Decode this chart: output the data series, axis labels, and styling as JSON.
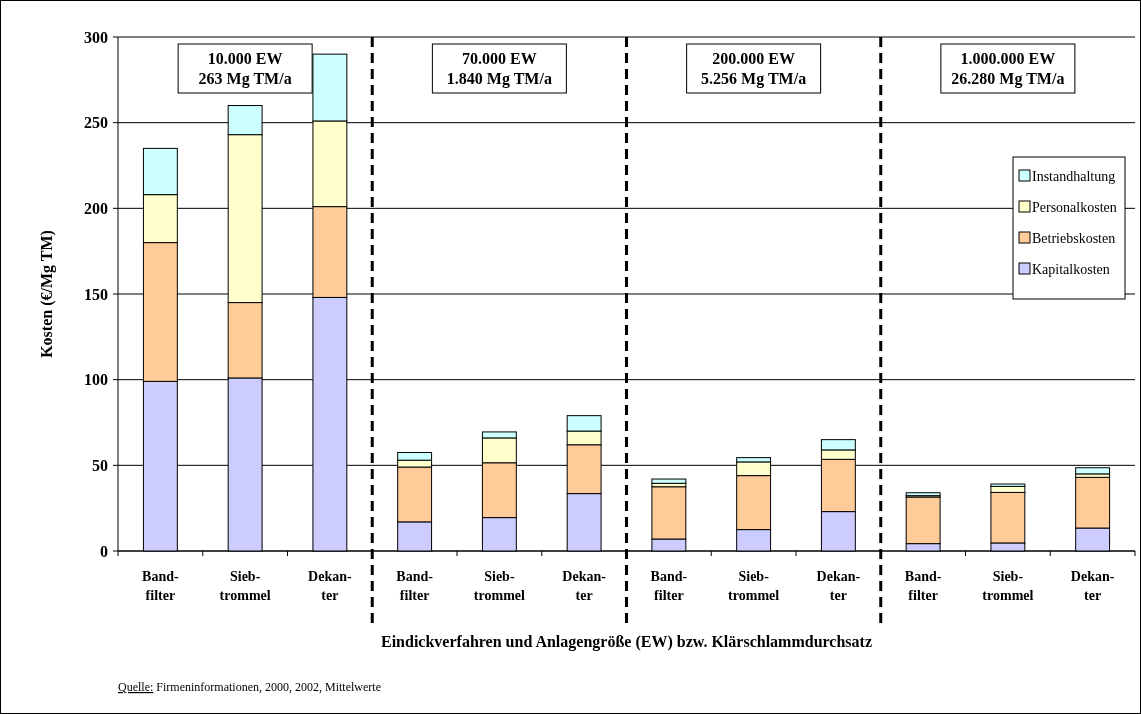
{
  "chart_data": {
    "type": "bar",
    "stacked": true,
    "ylabel": "Kosten (€/Mg TM)",
    "xlabel": "Eindickverfahren und Anlagengröße (EW) bzw. Klärschlammdurchsatz",
    "categories": [
      "Band-\nfilter",
      "Sieb-\ntrommel",
      "Dekan-\nter",
      "Band-\nfilter",
      "Sieb-\ntrommel",
      "Dekan-\nter",
      "Band-\nfilter",
      "Sieb-\ntrommel",
      "Dekan-\nter",
      "Band-\nfilter",
      "Sieb-\ntrommel",
      "Dekan-\nter"
    ],
    "series": [
      {
        "name": "Kapitalkosten",
        "color": "#ccccff",
        "values": [
          99,
          101,
          148,
          17,
          19.5,
          33.5,
          7,
          12.5,
          23,
          4.3,
          4.7,
          13.4
        ]
      },
      {
        "name": "Betriebskosten",
        "color": "#ffcc99",
        "values": [
          81,
          44,
          53,
          32,
          32,
          28.5,
          30.5,
          31.5,
          30.5,
          27.2,
          29.5,
          29.6
        ]
      },
      {
        "name": "Personalkosten",
        "color": "#ffffcc",
        "values": [
          28,
          98,
          50,
          4,
          14.5,
          8,
          2,
          8,
          5.5,
          0.8,
          3.5,
          2
        ]
      },
      {
        "name": "Instandhaltung",
        "color": "#ccffff",
        "values": [
          27,
          17,
          39,
          4.5,
          3.5,
          9,
          2.5,
          2.5,
          6,
          1.7,
          1.4,
          3.6
        ]
      }
    ],
    "ylim": [
      0,
      300
    ],
    "yticks": [
      0,
      50,
      100,
      150,
      200,
      250,
      300
    ],
    "grid": "y",
    "legend": "top right",
    "annotations": [
      "10.000 EW\n263 Mg TM/a",
      "70.000 EW\n1.840 Mg TM/a",
      "200.000 EW\n5.256 Mg TM/a",
      "1.000.000 EW\n26.280 Mg TM/a",
      "Quelle: Firmeninformationen, 2000, 2002, Mittelwerte"
    ]
  }
}
